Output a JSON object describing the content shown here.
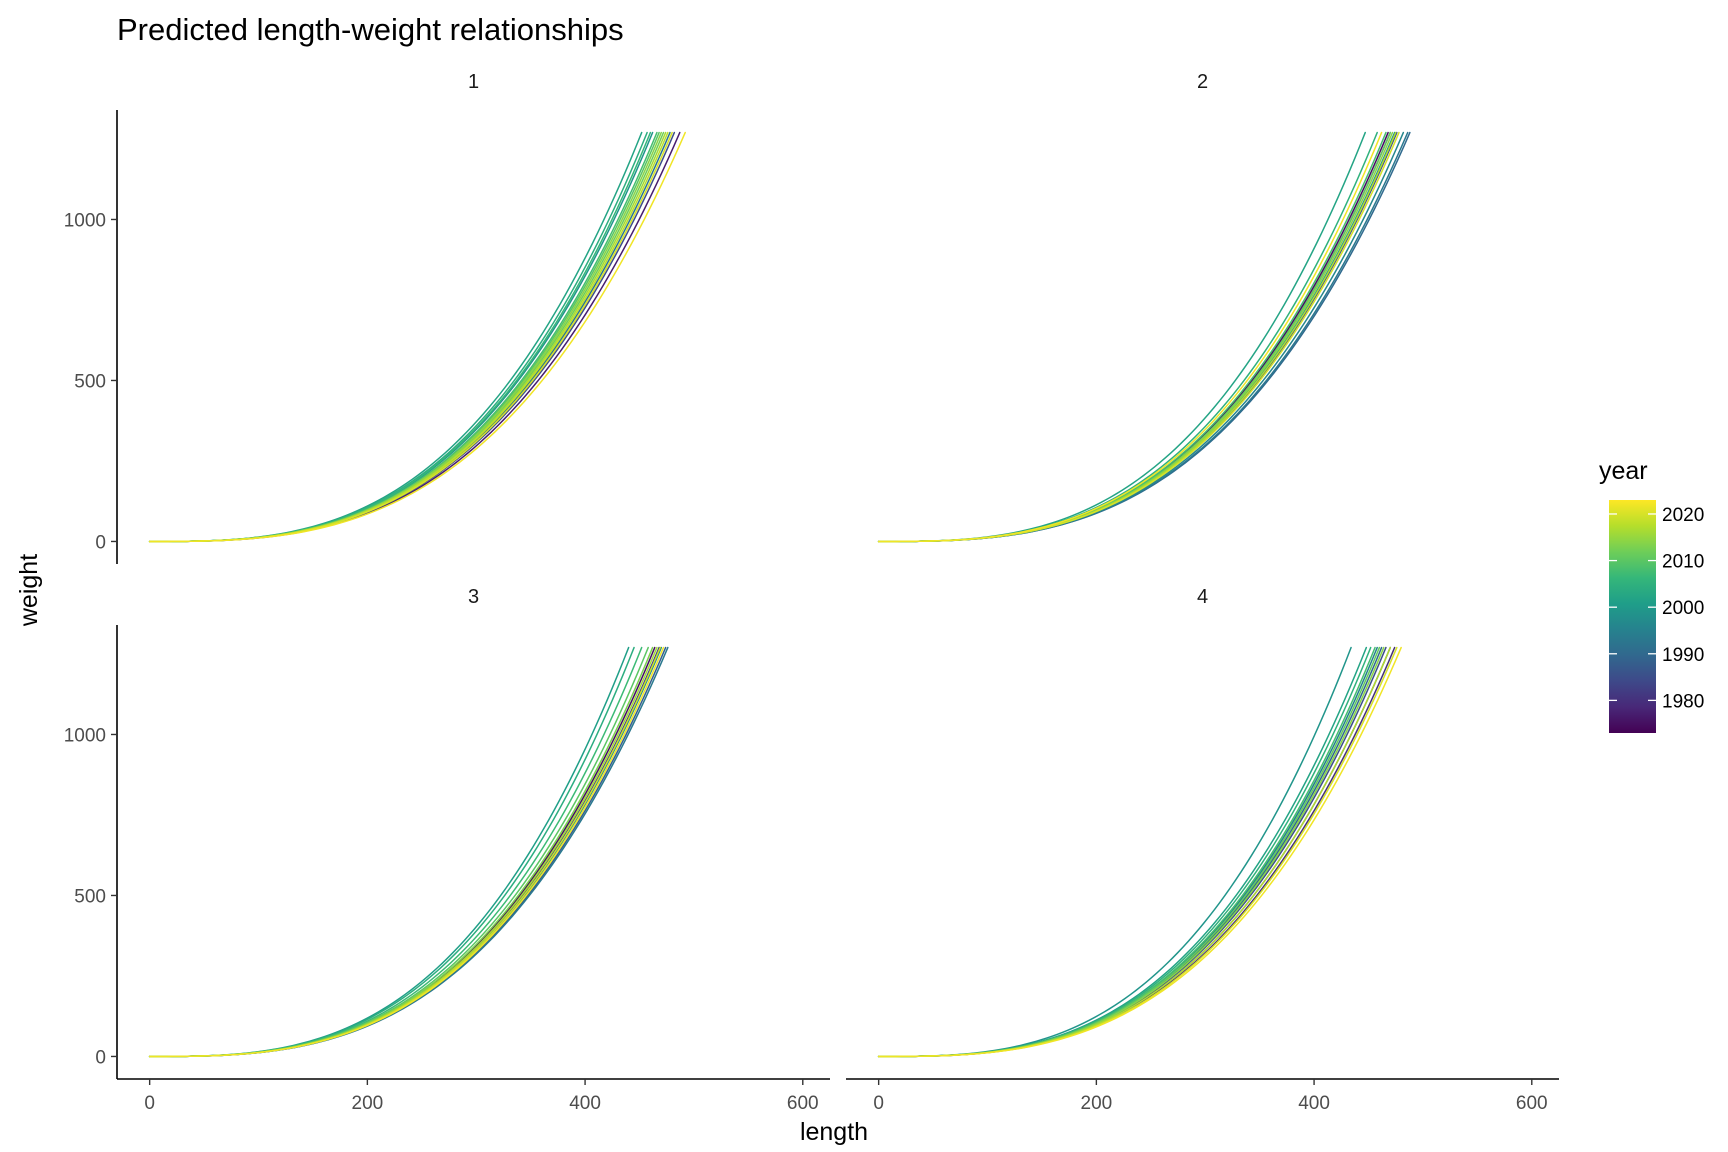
{
  "chart_data": {
    "type": "line",
    "title": "Predicted length-weight relationships",
    "xlabel": "length",
    "ylabel": "weight",
    "xlim": [
      -30,
      625
    ],
    "ylim": [
      -70,
      1340
    ],
    "x_ticks": [
      0,
      200,
      400,
      600
    ],
    "y_ticks": [
      0,
      500,
      1000
    ],
    "grid": false,
    "legend": {
      "title": "year",
      "position": "right",
      "type": "colorbar",
      "range": [
        1973,
        2023
      ],
      "ticks": [
        1980,
        1990,
        2000,
        2010,
        2020
      ],
      "colors": [
        "#440154",
        "#482878",
        "#3e4989",
        "#31688e",
        "#26828e",
        "#1f9e89",
        "#35b779",
        "#6ece58",
        "#b5de2b",
        "#fde725"
      ]
    },
    "panels": [
      {
        "label": "1",
        "year_range": [
          1977,
          2022
        ],
        "curves": [
          {
            "year": 1977,
            "x_end": 487
          },
          {
            "year": 1985,
            "x_end": 482
          },
          {
            "year": 1993,
            "x_end": 478
          },
          {
            "year": 1999,
            "x_end": 462
          },
          {
            "year": 2002,
            "x_end": 452
          },
          {
            "year": 2004,
            "x_end": 457
          },
          {
            "year": 2006,
            "x_end": 460
          },
          {
            "year": 2008,
            "x_end": 466
          },
          {
            "year": 2010,
            "x_end": 468
          },
          {
            "year": 2012,
            "x_end": 472
          },
          {
            "year": 2014,
            "x_end": 470
          },
          {
            "year": 2016,
            "x_end": 474
          },
          {
            "year": 2018,
            "x_end": 476
          },
          {
            "year": 2020,
            "x_end": 480
          },
          {
            "year": 2022,
            "x_end": 492
          }
        ]
      },
      {
        "label": "2",
        "year_range": [
          1975,
          2022
        ],
        "curves": [
          {
            "year": 1975,
            "x_end": 468
          },
          {
            "year": 1980,
            "x_end": 470
          },
          {
            "year": 1985,
            "x_end": 476
          },
          {
            "year": 1990,
            "x_end": 488
          },
          {
            "year": 1993,
            "x_end": 486
          },
          {
            "year": 1996,
            "x_end": 482
          },
          {
            "year": 1999,
            "x_end": 474
          },
          {
            "year": 2002,
            "x_end": 447
          },
          {
            "year": 2005,
            "x_end": 458
          },
          {
            "year": 2008,
            "x_end": 466
          },
          {
            "year": 2011,
            "x_end": 470
          },
          {
            "year": 2014,
            "x_end": 472
          },
          {
            "year": 2017,
            "x_end": 475
          },
          {
            "year": 2020,
            "x_end": 478
          },
          {
            "year": 2022,
            "x_end": 462
          }
        ]
      },
      {
        "label": "3",
        "year_range": [
          1975,
          2022
        ],
        "curves": [
          {
            "year": 1975,
            "x_end": 464
          },
          {
            "year": 1982,
            "x_end": 468
          },
          {
            "year": 1988,
            "x_end": 474
          },
          {
            "year": 1993,
            "x_end": 476
          },
          {
            "year": 1997,
            "x_end": 470
          },
          {
            "year": 2001,
            "x_end": 440
          },
          {
            "year": 2004,
            "x_end": 445
          },
          {
            "year": 2007,
            "x_end": 452
          },
          {
            "year": 2010,
            "x_end": 458
          },
          {
            "year": 2013,
            "x_end": 462
          },
          {
            "year": 2016,
            "x_end": 466
          },
          {
            "year": 2019,
            "x_end": 469
          },
          {
            "year": 2022,
            "x_end": 472
          }
        ]
      },
      {
        "label": "4",
        "year_range": [
          1975,
          2022
        ],
        "curves": [
          {
            "year": 1975,
            "x_end": 470
          },
          {
            "year": 1980,
            "x_end": 474
          },
          {
            "year": 1985,
            "x_end": 466
          },
          {
            "year": 1990,
            "x_end": 462
          },
          {
            "year": 1995,
            "x_end": 458
          },
          {
            "year": 1999,
            "x_end": 434
          },
          {
            "year": 2002,
            "x_end": 448
          },
          {
            "year": 2005,
            "x_end": 452
          },
          {
            "year": 2008,
            "x_end": 456
          },
          {
            "year": 2011,
            "x_end": 460
          },
          {
            "year": 2014,
            "x_end": 464
          },
          {
            "year": 2017,
            "x_end": 470
          },
          {
            "year": 2020,
            "x_end": 476
          },
          {
            "year": 2022,
            "x_end": 480
          }
        ]
      }
    ]
  }
}
